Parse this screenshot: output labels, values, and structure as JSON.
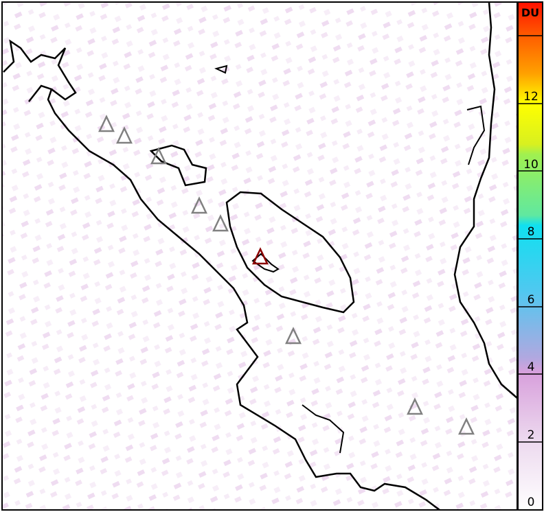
{
  "colorbar": {
    "unit_label": "DU",
    "tick_labels": [
      "0",
      "2",
      "4",
      "6",
      "8",
      "10",
      "12"
    ],
    "range": [
      0,
      14
    ],
    "colors": [
      "#ffffff",
      "#e6c8ea",
      "#b8a0e0",
      "#3cd8f0",
      "#80e880",
      "#ffff00",
      "#ff9000",
      "#ff2000"
    ]
  },
  "map": {
    "highlight_color": "#8b0000",
    "marker_color": "#808080",
    "coast_color": "#000000"
  }
}
